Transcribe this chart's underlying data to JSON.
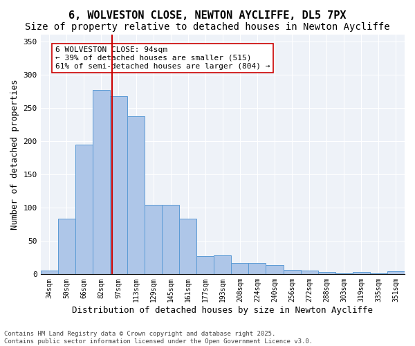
{
  "title_line1": "6, WOLVESTON CLOSE, NEWTON AYCLIFFE, DL5 7PX",
  "title_line2": "Size of property relative to detached houses in Newton Aycliffe",
  "xlabel": "Distribution of detached houses by size in Newton Aycliffe",
  "ylabel": "Number of detached properties",
  "bar_values": [
    6,
    84,
    195,
    277,
    268,
    237,
    104,
    104,
    84,
    27,
    28,
    17,
    17,
    14,
    7,
    6,
    3,
    1,
    3,
    1,
    4
  ],
  "categories": [
    "34sqm",
    "50sqm",
    "66sqm",
    "82sqm",
    "97sqm",
    "113sqm",
    "129sqm",
    "145sqm",
    "161sqm",
    "177sqm",
    "193sqm",
    "208sqm",
    "224sqm",
    "240sqm",
    "256sqm",
    "272sqm",
    "288sqm",
    "303sqm",
    "319sqm",
    "335sqm",
    "351sqm"
  ],
  "bar_color": "#aec6e8",
  "bar_edge_color": "#5b9bd5",
  "vline_x": 3.62,
  "vline_color": "#cc0000",
  "annotation_text": "6 WOLVESTON CLOSE: 94sqm\n← 39% of detached houses are smaller (515)\n61% of semi-detached houses are larger (804) →",
  "annotation_box_color": "white",
  "annotation_box_edge_color": "#cc0000",
  "ylim": [
    0,
    360
  ],
  "yticks": [
    0,
    50,
    100,
    150,
    200,
    250,
    300,
    350
  ],
  "background_color": "#eef2f8",
  "grid_color": "white",
  "footnote": "Contains HM Land Registry data © Crown copyright and database right 2025.\nContains public sector information licensed under the Open Government Licence v3.0.",
  "title_fontsize": 11,
  "subtitle_fontsize": 10,
  "xlabel_fontsize": 9,
  "ylabel_fontsize": 9,
  "tick_fontsize": 7,
  "annot_fontsize": 8,
  "footnote_fontsize": 6.5
}
